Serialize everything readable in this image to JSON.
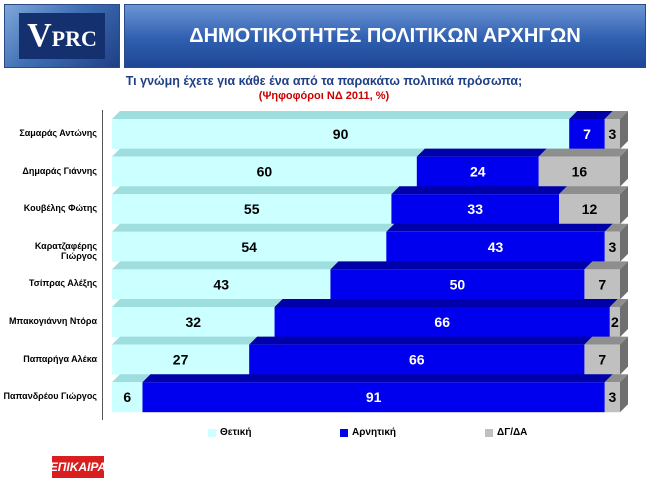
{
  "header": {
    "logo_text_big": "V",
    "logo_text_rest": "PRC",
    "title": "ΔΗΜΟΤΙΚΟΤΗΤΕΣ ΠΟΛΙΤΙΚΩΝ ΑΡΧΗΓΩΝ"
  },
  "question": "Τι γνώμη έχετε για κάθε ένα από τα παρακάτω πολιτικά πρόσωπα;",
  "subquestion": "(Ψηφοφόροι ΝΔ  2011, %)",
  "brand": "ΕΠΙΚΑΙΡΑ",
  "colors": {
    "positive": "#ccffff",
    "negative": "#0000ee",
    "dk_na": "#c0c0c0"
  },
  "chart_data": {
    "type": "bar",
    "orientation": "horizontal",
    "stacked": true,
    "categories": [
      "Σαμαράς Αντώνης",
      "Δημαράς Γιάννης",
      "Κουβέλης Φώτης",
      "Καρατζαφέρης Γιώργος",
      "Τσίπρας Αλέξης",
      "Μπακογιάννη Ντόρα",
      "Παπαρήγα Αλέκα",
      "Παπανδρέου Γιώργος"
    ],
    "series": [
      {
        "name": "Θετική",
        "values": [
          90,
          60,
          55,
          54,
          43,
          32,
          27,
          6
        ]
      },
      {
        "name": "Αρνητική",
        "values": [
          7,
          24,
          33,
          43,
          50,
          66,
          66,
          91
        ]
      },
      {
        "name": "ΔΓ/ΔΑ",
        "values": [
          3,
          16,
          12,
          3,
          7,
          2,
          7,
          3
        ]
      }
    ],
    "xlim": [
      0,
      100
    ],
    "legend_position": "bottom",
    "grid": false
  }
}
